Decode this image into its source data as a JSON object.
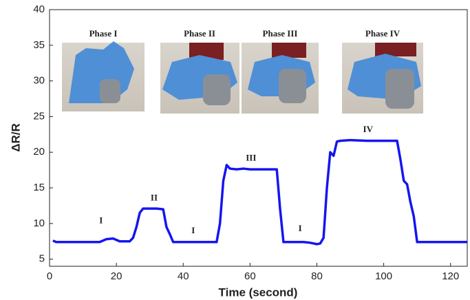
{
  "chart_data": {
    "type": "line",
    "xlabel": "Time (second)",
    "ylabel": "ΔR/R",
    "inset_labels": [
      "Phase I",
      "Phase II",
      "Phase III",
      "Phase IV"
    ],
    "x": [
      1,
      2,
      15,
      17,
      19,
      21,
      24,
      25,
      26,
      27,
      28,
      32,
      34,
      35,
      36,
      37,
      50,
      51,
      52,
      53,
      54,
      56,
      58,
      60,
      68,
      69,
      70,
      76,
      78,
      79,
      80,
      81,
      82,
      83,
      84,
      85,
      86,
      87,
      90,
      95,
      104,
      105,
      106,
      107,
      108,
      109,
      110,
      125
    ],
    "values": [
      7.6,
      7.4,
      7.4,
      7.8,
      7.9,
      7.5,
      7.5,
      8,
      9.5,
      11.5,
      12.1,
      12.1,
      12,
      9.5,
      8.5,
      7.4,
      7.4,
      10,
      16,
      18.2,
      17.7,
      17.6,
      17.7,
      17.6,
      17.6,
      12,
      7.4,
      7.4,
      7.3,
      7.2,
      7.1,
      7.2,
      8,
      15,
      20,
      19.5,
      21.5,
      21.6,
      21.7,
      21.6,
      21.6,
      19,
      16,
      15.5,
      13,
      11,
      7.4,
      7.4
    ],
    "color": "#1515f0",
    "annotations": [
      {
        "text": "I",
        "x": 15.4,
        "y": 10.3
      },
      {
        "text": "II",
        "x": 31.3,
        "y": 13.5
      },
      {
        "text": "I",
        "x": 43,
        "y": 8.9
      },
      {
        "text": "III",
        "x": 60.3,
        "y": 19.1
      },
      {
        "text": "I",
        "x": 75,
        "y": 9.2
      },
      {
        "text": "IV",
        "x": 95.3,
        "y": 23.1
      }
    ],
    "xlim": [
      0,
      125
    ],
    "xticks": [
      0,
      20,
      40,
      60,
      80,
      100,
      120
    ],
    "ylim": [
      4,
      40
    ],
    "yticks": [
      5,
      10,
      15,
      20,
      25,
      30,
      35,
      40
    ]
  }
}
